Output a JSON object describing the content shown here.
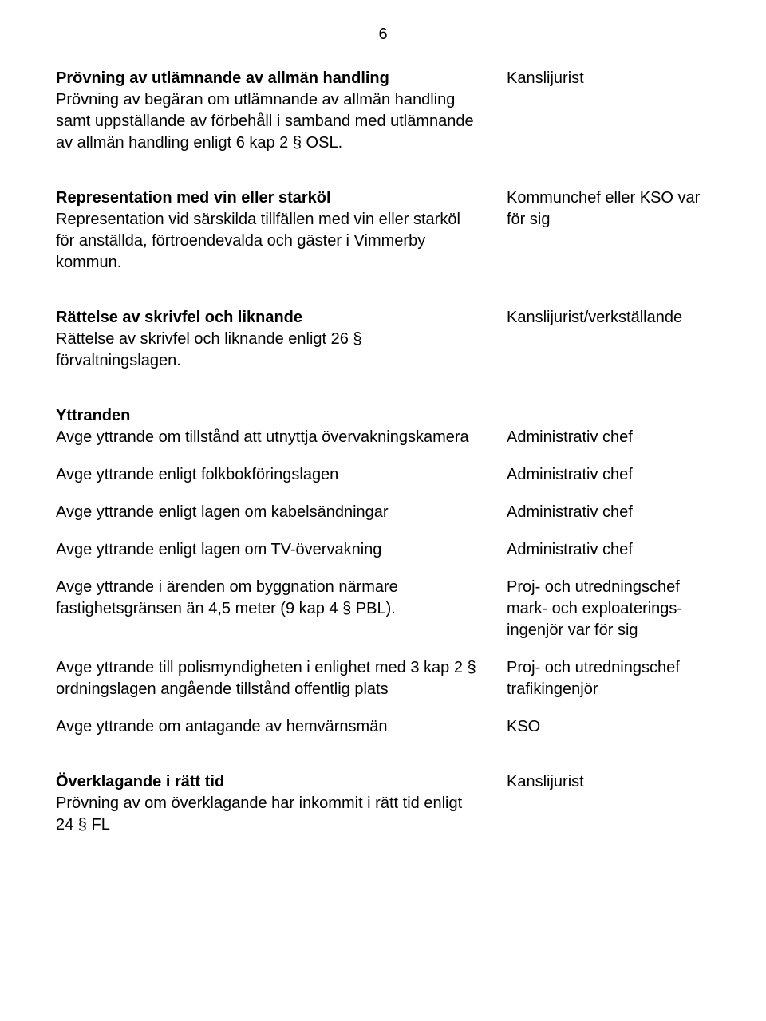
{
  "pageNumber": "6",
  "sections": {
    "provning": {
      "heading": "Prövning av utlämnande av allmän handling",
      "body": "Prövning av begäran om utlämnande av allmän handling samt uppställande av förbehåll i samband med utlämnande av allmän handling enligt 6 kap 2 § OSL.",
      "right": "Kanslijurist"
    },
    "representation": {
      "heading": "Representation med vin eller starköl",
      "body": "Representation vid särskilda tillfällen med vin eller starköl för anställda, förtroendevalda och gäster i Vimmerby kommun.",
      "right": "Kommunchef eller KSO var för sig"
    },
    "rattelse": {
      "heading": "Rättelse av skrivfel och liknande",
      "body": "Rättelse av skrivfel och liknande enligt 26 § förvaltningslagen.",
      "right": "Kanslijurist/verkställande"
    },
    "yttranden": {
      "heading": "Yttranden",
      "rows": [
        {
          "left": "Avge yttrande om tillstånd att utnyttja övervakningskamera",
          "right": "Administrativ chef"
        },
        {
          "left": "Avge yttrande enligt folkbokföringslagen",
          "right": "Administrativ chef"
        },
        {
          "left": "Avge yttrande enligt lagen om kabelsändningar",
          "right": "Administrativ chef"
        },
        {
          "left": "Avge yttrande enligt lagen om TV-övervakning",
          "right": "Administrativ chef"
        },
        {
          "left": "Avge yttrande i ärenden om byggnation närmare fastighetsgränsen än 4,5 meter (9 kap 4 § PBL).",
          "right": "Proj- och utredningschef mark- och exploaterings-ingenjör var för sig"
        },
        {
          "left": "Avge yttrande till polismyndigheten i enlighet med 3 kap 2 § ordningslagen angående tillstånd offentlig plats",
          "right": "Proj- och utredningschef trafikingenjör"
        },
        {
          "left": "Avge yttrande om antagande av hemvärnsmän",
          "right": "KSO"
        }
      ]
    },
    "overklagande": {
      "heading": "Överklagande i rätt tid",
      "body": "Prövning av om överklagande har inkommit i rätt tid enligt 24 § FL",
      "right": "Kanslijurist"
    }
  }
}
